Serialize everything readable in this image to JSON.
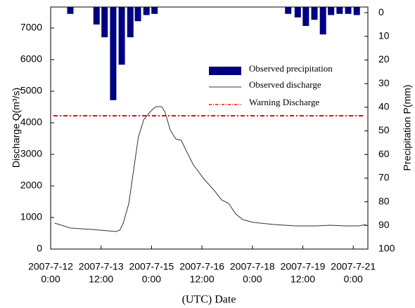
{
  "chart_data": {
    "type": "combo",
    "x_label": "(UTC) Date",
    "y_label": "Discharge Q(m³/s)",
    "y2_label": "Precipitation P(mm)",
    "xlim": [
      0,
      6.29
    ],
    "xticks": [
      {
        "value": 0,
        "label": [
          "2007-7-12",
          "0:00"
        ]
      },
      {
        "value": 1,
        "label": [
          "2007-7-13",
          "12:00"
        ]
      },
      {
        "value": 2,
        "label": [
          "2007-7-15",
          "0:00"
        ]
      },
      {
        "value": 3,
        "label": [
          "2007-7-16",
          "12:00"
        ]
      },
      {
        "value": 4,
        "label": [
          "2007-7-18",
          "0:00"
        ]
      },
      {
        "value": 5,
        "label": [
          "2007-7-19",
          "12:00"
        ]
      },
      {
        "value": 6,
        "label": [
          "2007-7-21",
          "0:00"
        ]
      }
    ],
    "ylim": [
      0,
      7667
    ],
    "yticks": [
      0,
      1000,
      2000,
      3000,
      4000,
      5000,
      6000,
      7000
    ],
    "y2lim": [
      100,
      -2.4
    ],
    "y2ticks": [
      0,
      10,
      20,
      30,
      40,
      50,
      60,
      70,
      80,
      90,
      100
    ],
    "series": [
      {
        "name": "Observed precipitation",
        "color": "#000080",
        "axis": "y2",
        "kind": "bar",
        "x": [
          0.39,
          0.91,
          1.07,
          1.24,
          1.41,
          1.58,
          1.73,
          1.9,
          2.06,
          4.71,
          4.9,
          5.06,
          5.23,
          5.4,
          5.56,
          5.73,
          5.9,
          6.07
        ],
        "values": [
          0.5,
          5,
          10.4,
          37,
          22,
          10.4,
          3.6,
          1,
          0.5,
          0.5,
          2,
          5.6,
          3,
          9.2,
          1,
          0.5,
          0.5,
          1
        ]
      },
      {
        "name": "Observed discharge",
        "color": "#333333",
        "kind": "line",
        "x": [
          0.08,
          0.39,
          0.81,
          1.3,
          1.37,
          1.44,
          1.55,
          1.65,
          1.74,
          1.85,
          1.99,
          2.09,
          2.2,
          2.27,
          2.37,
          2.48,
          2.59,
          2.69,
          2.83,
          3.04,
          3.25,
          3.39,
          3.53,
          3.67,
          3.81,
          4.02,
          4.43,
          4.85,
          5.27,
          5.55,
          5.83,
          6.11,
          6.25
        ],
        "values": [
          822,
          667,
          622,
          556,
          600,
          822,
          1444,
          2556,
          3556,
          4111,
          4378,
          4511,
          4511,
          4333,
          3778,
          3489,
          3444,
          3111,
          2667,
          2222,
          1844,
          1556,
          1444,
          1111,
          933,
          844,
          778,
          733,
          733,
          756,
          733,
          733,
          778
        ]
      },
      {
        "name": "Warning Discharge",
        "color": "#ff0000",
        "kind": "hline",
        "value": 4222
      }
    ]
  }
}
